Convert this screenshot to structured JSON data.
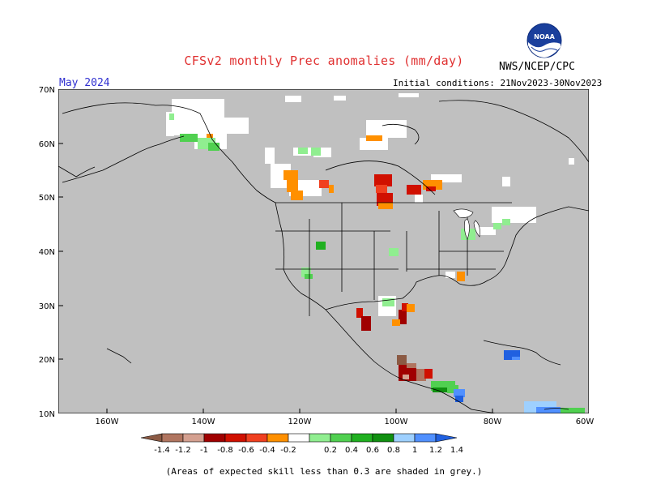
{
  "title": "CFSv2 monthly Prec anomalies (mm/day)",
  "agency": "NWS/NCEP/CPC",
  "month": "May 2024",
  "initial_conditions": "Initial conditions: 21Nov2023-30Nov2023",
  "footnote": "(Areas of expected skill less than 0.3 are shaded in grey.)",
  "logo": {
    "text": "NOAA"
  },
  "axes": {
    "lat_labels": [
      "70N",
      "60N",
      "50N",
      "40N",
      "30N",
      "20N",
      "10N"
    ],
    "lon_labels": [
      "160W",
      "140W",
      "120W",
      "100W",
      "80W",
      "60W"
    ]
  },
  "colors": {
    "grey": "#c0c0c0",
    "boundary": "#000000"
  },
  "colorbar": {
    "labels": [
      "-1.4",
      "-1.2",
      "-1",
      "-0.8",
      "-0.6",
      "-0.4",
      "-0.2",
      "0.2",
      "0.4",
      "0.6",
      "0.8",
      "1",
      "1.2",
      "1.4"
    ],
    "colors": [
      "#8b5a44",
      "#b07560",
      "#d4a090",
      "#a00000",
      "#d01000",
      "#f04020",
      "#ff9000",
      "#ffffff",
      "#90ee90",
      "#50d050",
      "#20b020",
      "#109010",
      "#9ed0ff",
      "#5090ff",
      "#2060e0"
    ]
  }
}
